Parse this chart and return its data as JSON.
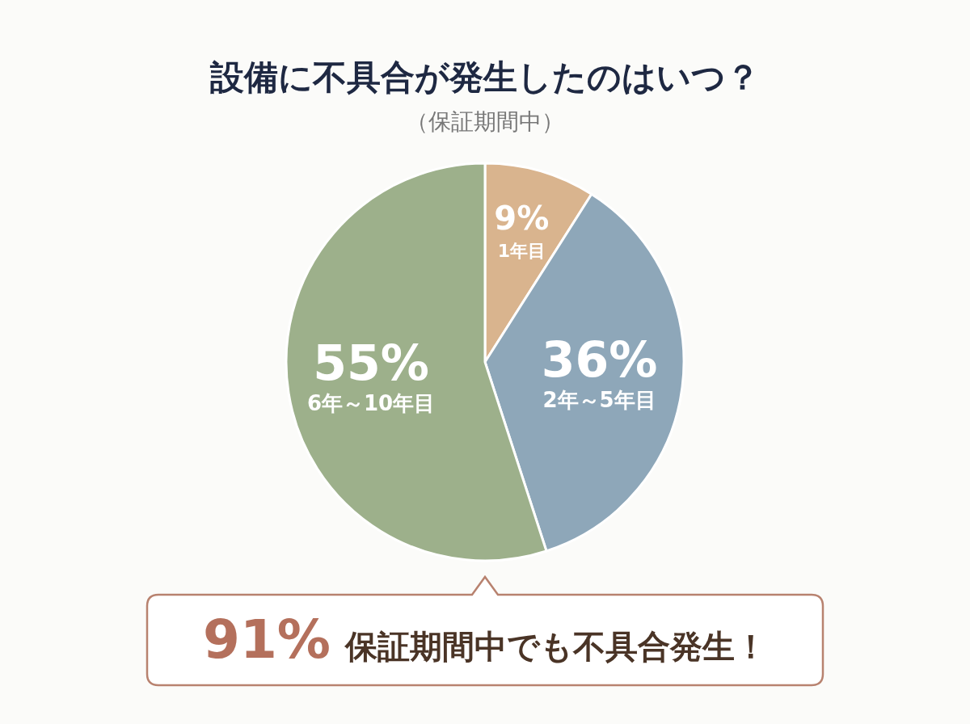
{
  "chart_data": {
    "type": "pie",
    "title": "設備に不具合が発生したのはいつ？",
    "subtitle": "（保証期間中）",
    "categories": [
      "1年目",
      "2年～5年目",
      "6年～10年目"
    ],
    "values": [
      9,
      36,
      55
    ],
    "colors": [
      "#d9b48e",
      "#8ea7b9",
      "#9db08b"
    ],
    "value_labels": [
      "9%",
      "36%",
      "55%"
    ],
    "annotations": [
      "91%",
      "保証期間中でも不具合発生！"
    ]
  }
}
